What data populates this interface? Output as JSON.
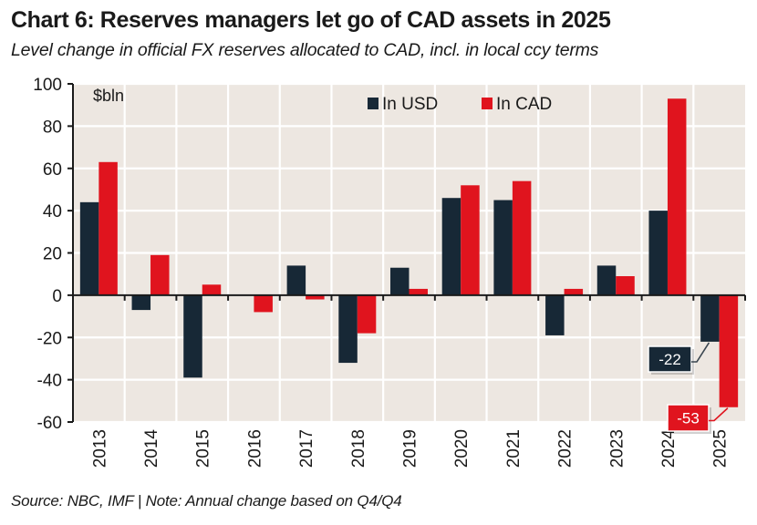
{
  "header": {
    "title": "Chart 6: Reserves managers let go of CAD assets in 2025",
    "subtitle": "Level change in official FX reserves allocated to CAD, incl. in local ccy terms"
  },
  "footer": {
    "source": "Source: NBC, IMF | Note: Annual change based on Q4/Q4"
  },
  "colors": {
    "usd": "#172836",
    "cad": "#e0141e",
    "plot_background": "#ede7e1",
    "grid": "#ffffff",
    "axis": "#1a1a1a"
  },
  "chart_data": {
    "type": "bar",
    "title": "Chart 6: Reserves managers let go of CAD assets in 2025",
    "subtitle": "Level change in official FX reserves allocated to CAD, incl. in local ccy terms",
    "xlabel": "",
    "ylabel": "$bln",
    "unit_label": "$bln",
    "ylim": [
      -60,
      100
    ],
    "yticks": [
      100,
      80,
      60,
      40,
      20,
      0,
      -20,
      -40,
      -60
    ],
    "grid": true,
    "legend_position": "top-center",
    "categories": [
      "2013",
      "2014",
      "2015",
      "2016",
      "2017",
      "2018",
      "2019",
      "2020",
      "2021",
      "2022",
      "2023",
      "2024",
      "2025"
    ],
    "series": [
      {
        "name": "In USD",
        "color": "#172836",
        "values": [
          44,
          -7,
          -39,
          0,
          14,
          -32,
          13,
          46,
          45,
          -19,
          14,
          40,
          -22
        ]
      },
      {
        "name": "In CAD",
        "color": "#e0141e",
        "values": [
          63,
          19,
          5,
          -8,
          -2,
          -18,
          3,
          52,
          54,
          3,
          9,
          93,
          -53
        ]
      }
    ],
    "annotations": [
      {
        "category": "2025",
        "series": "In USD",
        "text": "-22"
      },
      {
        "category": "2025",
        "series": "In CAD",
        "text": "-53"
      }
    ]
  }
}
